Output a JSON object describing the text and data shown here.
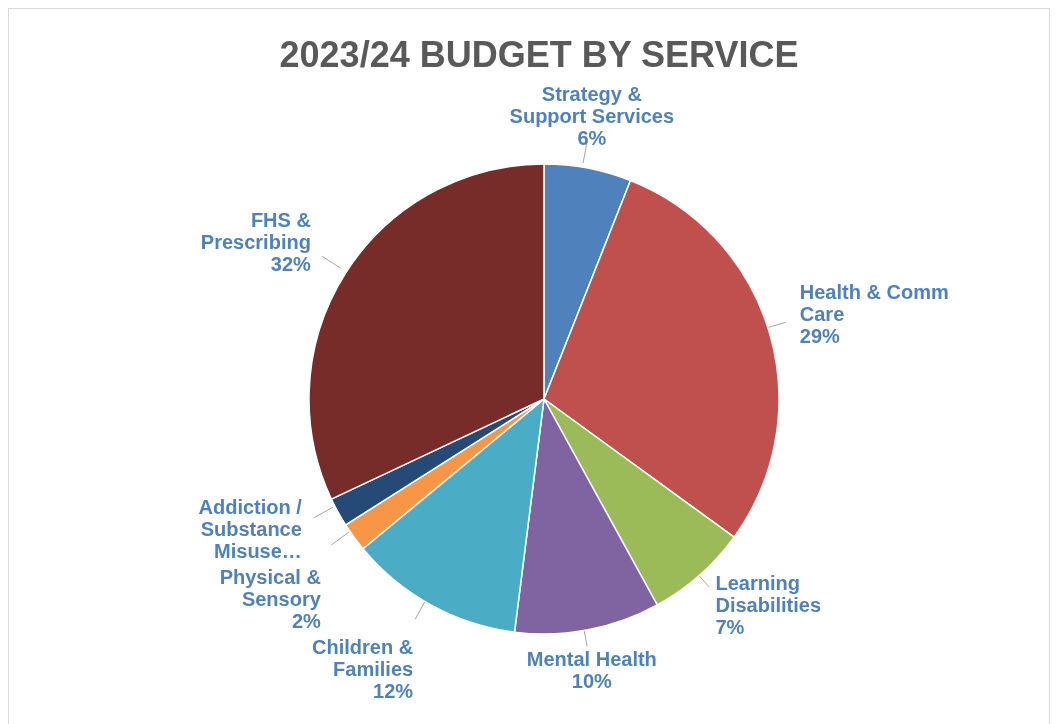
{
  "chart_data": {
    "type": "pie",
    "title": "2023/24 BUDGET BY SERVICE",
    "categories": [
      "Strategy & Support Services",
      "Health & Comm Care",
      "Learning Disabilities",
      "Mental Health",
      "Children & Families",
      "Physical & Sensory",
      "Addiction / Substance Misuse…",
      "FHS & Prescribing"
    ],
    "values": [
      6,
      29,
      7,
      10,
      12,
      2,
      2,
      32
    ],
    "value_labels": [
      "6%",
      "29%",
      "7%",
      "10%",
      "12%",
      "2%",
      null,
      "32%"
    ],
    "colors": [
      "#4f81bd",
      "#c0504d",
      "#9bbb59",
      "#8064a2",
      "#4bacc6",
      "#f79646",
      "#254a77",
      "#772c2a"
    ]
  }
}
